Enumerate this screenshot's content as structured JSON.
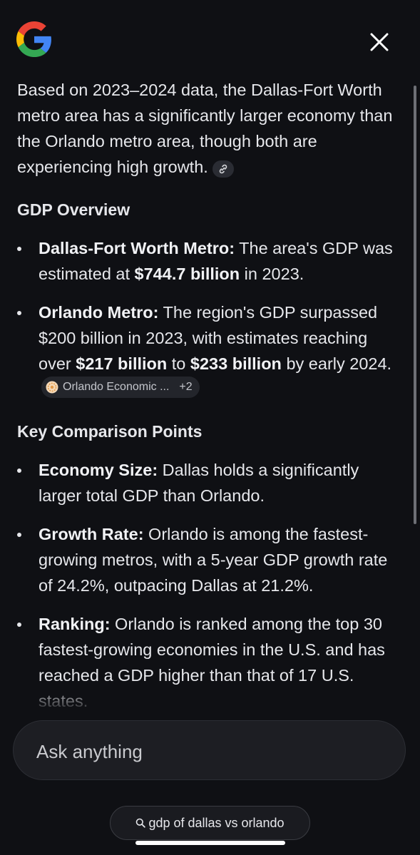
{
  "header": {
    "logo_icon": "google-g-icon",
    "close_icon": "close-icon"
  },
  "content": {
    "intro": "Based on 2023–2024 data, the Dallas-Fort Worth metro area has a significantly larger economy than the Orlando metro area, though both are experiencing high growth.",
    "intro_link_icon": "link-icon",
    "sections": [
      {
        "heading": "GDP Overview",
        "items": [
          {
            "label": "Dallas-Fort Worth Metro:",
            "text_1": " The area's GDP was estimated at ",
            "bold_1": "$744.7 billion",
            "text_2": " in 2023."
          },
          {
            "label": "Orlando Metro:",
            "text_1": " The region's GDP surpassed $200 billion in 2023, with estimates reaching over ",
            "bold_1": "$217 billion",
            "text_2": " to ",
            "bold_2": "$233 billion",
            "text_3": " by early 2024.",
            "source": {
              "name": "Orlando Economic ...",
              "more": "+2"
            }
          }
        ]
      },
      {
        "heading": "Key Comparison Points",
        "items": [
          {
            "label": "Economy Size:",
            "text_1": " Dallas holds a significantly larger total GDP than Orlando."
          },
          {
            "label": "Growth Rate:",
            "text_1": " Orlando is among the fastest-growing metros, with a 5-year GDP growth rate of 24.2%, outpacing Dallas at 21.2%."
          },
          {
            "label": "Ranking:",
            "text_1": " Orlando is ranked among the top 30 fastest-growing economies in the U.S. and has reached a GDP higher than that of 17 U.S. states."
          }
        ]
      }
    ]
  },
  "ask": {
    "placeholder": "Ask anything"
  },
  "query": {
    "text": "gdp of dallas vs orlando"
  },
  "colors": {
    "background": "#0f1014",
    "text": "#e6e7eb",
    "input_bg": "#1d1e23"
  }
}
